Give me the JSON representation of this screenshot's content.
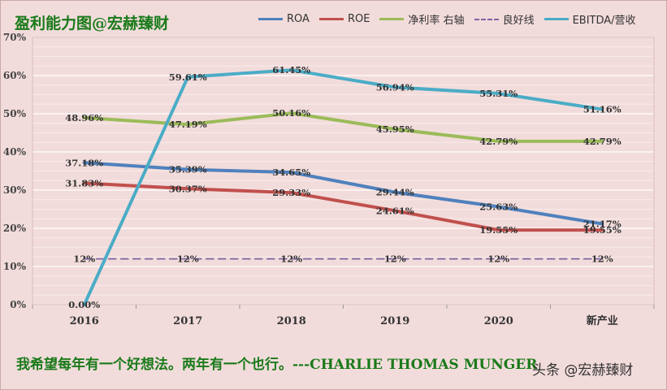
{
  "title": "盈利能力图@宏赫臻财",
  "quote": "我希望每年有一个好想法。两年有一个也行。---CHARLIE THOMAS MUNGER",
  "watermark": "头条 @宏赫臻财",
  "chart_data": {
    "type": "line",
    "categories": [
      "2016",
      "2017",
      "2018",
      "2019",
      "2020",
      "新产业"
    ],
    "ylim": [
      0,
      70
    ],
    "yticks": [
      "0%",
      "10%",
      "20%",
      "30%",
      "40%",
      "50%",
      "60%",
      "70%"
    ],
    "grid": true,
    "legend_position": "top-right",
    "series": [
      {
        "name": "ROA",
        "color": "#4f81bd",
        "dashed": false,
        "values": [
          37.18,
          35.39,
          34.65,
          29.44,
          25.63,
          21.17
        ],
        "labels": [
          "37.18%",
          "35.39%",
          "34.65%",
          "29.44%",
          "25.63%",
          "21.17%"
        ]
      },
      {
        "name": "ROE",
        "color": "#c0504d",
        "dashed": false,
        "values": [
          31.83,
          30.37,
          29.33,
          24.61,
          19.55,
          19.55
        ],
        "labels": [
          "31.83%",
          "30.37%",
          "29.33%",
          "24.61%",
          "19.55%",
          "19.55%"
        ]
      },
      {
        "name": "净利率 右轴",
        "color": "#9bbb59",
        "dashed": false,
        "values": [
          48.96,
          47.19,
          50.16,
          45.95,
          42.79,
          42.79
        ],
        "labels": [
          "48.96%",
          "47.19%",
          "50.16%",
          "45.95%",
          "42.79%",
          "42.79%"
        ]
      },
      {
        "name": "良好线",
        "color": "#8064a2",
        "dashed": true,
        "values": [
          12,
          12,
          12,
          12,
          12,
          12
        ],
        "labels": [
          "12%",
          "12%",
          "12%",
          "12%",
          "12%",
          "12%"
        ]
      },
      {
        "name": "EBITDA/营收",
        "color": "#4bacc6",
        "dashed": false,
        "values": [
          0.0,
          59.61,
          61.45,
          56.94,
          55.31,
          51.16
        ],
        "labels": [
          "0.00%",
          "59.61%",
          "61.45%",
          "56.94%",
          "55.31%",
          "51.16%"
        ]
      }
    ]
  }
}
